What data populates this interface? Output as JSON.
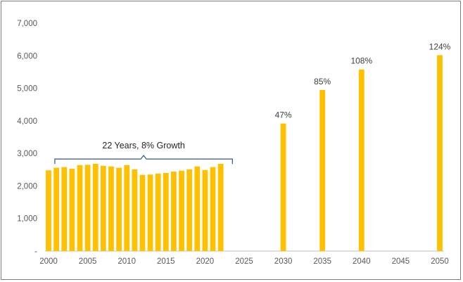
{
  "chart_data": {
    "type": "bar",
    "title": "",
    "xlabel": "",
    "ylabel": "",
    "ylim": [
      0,
      7000
    ],
    "yticks": [
      0,
      1000,
      2000,
      3000,
      4000,
      5000,
      6000,
      7000
    ],
    "ytick_labels": [
      "-",
      "1,000",
      "2,000",
      "3,000",
      "4,000",
      "5,000",
      "6,000",
      "7,000"
    ],
    "xlim": [
      2000,
      2050
    ],
    "xticks": [
      2000,
      2005,
      2010,
      2015,
      2020,
      2025,
      2030,
      2035,
      2040,
      2045,
      2050
    ],
    "bar_color": "#FFC000",
    "grid": false,
    "legend": "none",
    "series": [
      {
        "x": [
          2000,
          2001,
          2002,
          2003,
          2004,
          2005,
          2006,
          2007,
          2008,
          2009,
          2010,
          2011,
          2012,
          2013,
          2014,
          2015,
          2016,
          2017,
          2018,
          2019,
          2020,
          2021,
          2022,
          2030,
          2035,
          2040,
          2045,
          2050
        ],
        "values": [
          2480,
          2560,
          2580,
          2530,
          2640,
          2650,
          2680,
          2620,
          2600,
          2560,
          2640,
          2510,
          2340,
          2350,
          2380,
          2400,
          2440,
          2470,
          2510,
          2600,
          2490,
          2580,
          2680,
          3920,
          4950,
          5580,
          0,
          6020
        ]
      }
    ],
    "data_labels": [
      {
        "x": 2030,
        "text": "47%"
      },
      {
        "x": 2035,
        "text": "85%"
      },
      {
        "x": 2040,
        "text": "108%"
      },
      {
        "x": 2050,
        "text": "124%"
      }
    ],
    "annotation": {
      "text": "22 Years, 8% Growth",
      "x_start": 2000.8,
      "x_end": 2023.5,
      "y": 3000
    }
  }
}
